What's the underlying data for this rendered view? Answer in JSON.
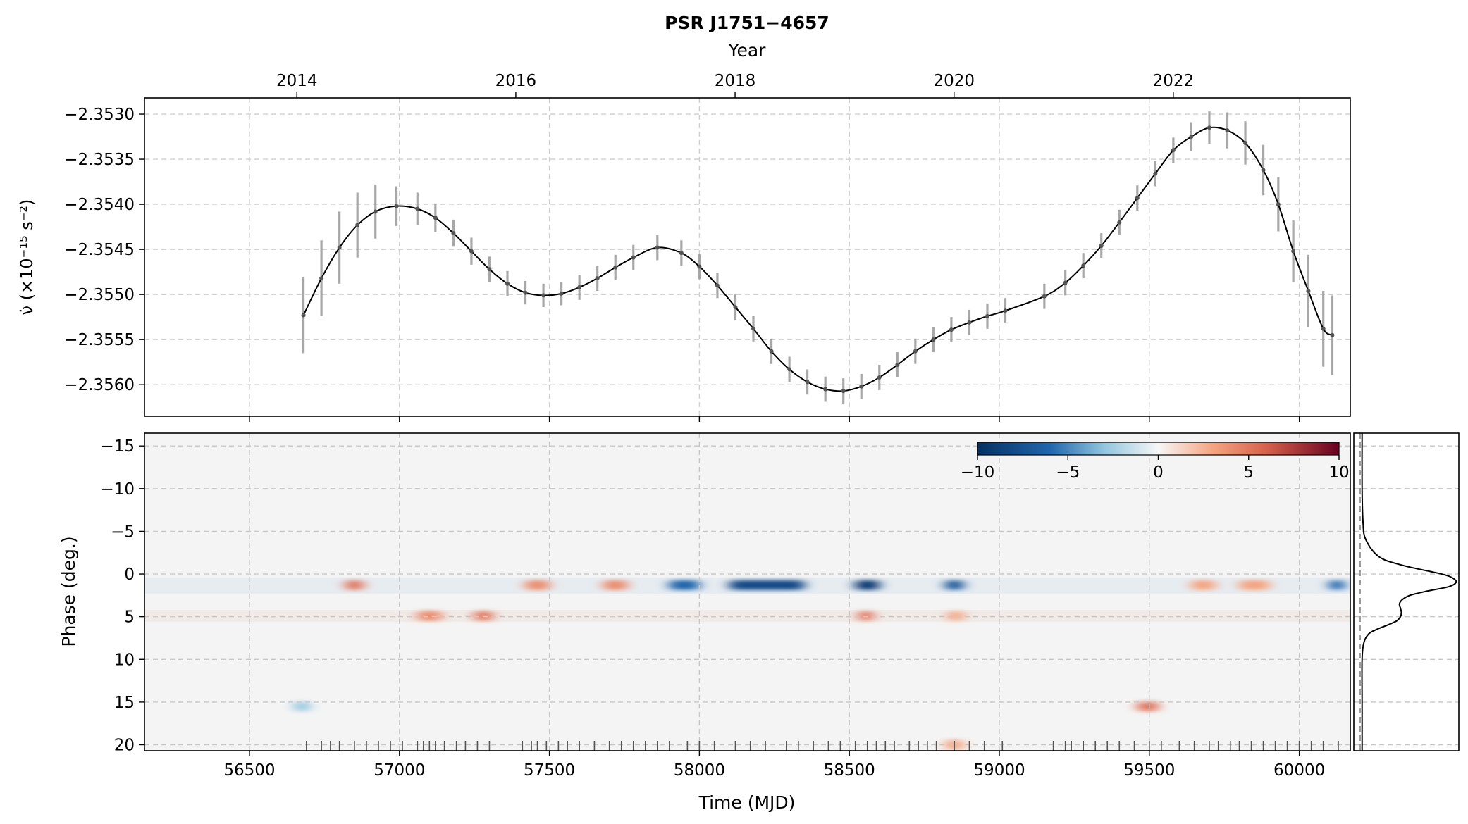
{
  "figure": {
    "title": "PSR J1751−4657"
  },
  "chart_data": [
    {
      "type": "line",
      "panel": "spin-down",
      "title": "PSR J1751−4657",
      "xlabel": "Time (MJD)",
      "top_xlabel": "Year",
      "ylabel": "ν̇ (×10⁻¹⁵ s⁻²)",
      "xlim": [
        56150,
        60170
      ],
      "ylim": [
        -2.35635,
        -2.35282
      ],
      "x_ticks": [
        56500,
        57000,
        57500,
        58000,
        58500,
        59000,
        59500,
        60000
      ],
      "y_ticks": [
        -2.353,
        -2.3535,
        -2.354,
        -2.3545,
        -2.355,
        -2.3555,
        -2.356
      ],
      "y_tick_labels": [
        "−2.3530",
        "−2.3535",
        "−2.3540",
        "−2.3545",
        "−2.3550",
        "−2.3555",
        "−2.3560"
      ],
      "year_ticks": [
        {
          "label": "2014",
          "mjd": 56658
        },
        {
          "label": "2016",
          "mjd": 57388
        },
        {
          "label": "2018",
          "mjd": 58119
        },
        {
          "label": "2020",
          "mjd": 58849
        },
        {
          "label": "2022",
          "mjd": 59580
        }
      ],
      "grid": true,
      "series": [
        {
          "color": "#000000",
          "errorbar_color": "#999999",
          "x": [
            56680,
            56740,
            56800,
            56860,
            56920,
            56990,
            57060,
            57120,
            57180,
            57240,
            57300,
            57360,
            57420,
            57480,
            57540,
            57600,
            57660,
            57720,
            57780,
            57860,
            57940,
            58000,
            58060,
            58120,
            58180,
            58240,
            58300,
            58360,
            58420,
            58480,
            58540,
            58600,
            58660,
            58720,
            58780,
            58840,
            58900,
            58960,
            59020,
            59150,
            59220,
            59280,
            59340,
            59400,
            59460,
            59520,
            59580,
            59640,
            59700,
            59760,
            59820,
            59880,
            59930,
            59980,
            60030,
            60080,
            60110
          ],
          "y": [
            -2.35523,
            -2.35482,
            -2.35448,
            -2.35423,
            -2.35408,
            -2.35402,
            -2.35405,
            -2.35415,
            -2.35432,
            -2.35452,
            -2.35472,
            -2.35488,
            -2.35498,
            -2.35501,
            -2.35499,
            -2.35492,
            -2.35482,
            -2.3547,
            -2.35459,
            -2.35448,
            -2.35454,
            -2.35469,
            -2.3549,
            -2.35514,
            -2.35538,
            -2.35563,
            -2.35583,
            -2.35597,
            -2.35605,
            -2.35607,
            -2.35602,
            -2.35592,
            -2.35578,
            -2.35563,
            -2.3555,
            -2.35539,
            -2.35531,
            -2.35524,
            -2.35518,
            -2.35502,
            -2.35487,
            -2.35468,
            -2.35446,
            -2.3542,
            -2.35393,
            -2.35366,
            -2.3534,
            -2.35325,
            -2.35315,
            -2.35318,
            -2.35332,
            -2.35362,
            -2.354,
            -2.35452,
            -2.35496,
            -2.35538,
            -2.35545
          ],
          "err": [
            0.00042,
            0.00042,
            0.0004,
            0.00036,
            0.0003,
            0.00022,
            0.00018,
            0.00016,
            0.00015,
            0.00015,
            0.00014,
            0.00014,
            0.00013,
            0.00013,
            0.00013,
            0.00014,
            0.00014,
            0.00014,
            0.00014,
            0.00014,
            0.00014,
            0.00014,
            0.00014,
            0.00014,
            0.00014,
            0.00014,
            0.00014,
            0.00014,
            0.00014,
            0.00014,
            0.00014,
            0.00014,
            0.00014,
            0.00014,
            0.00014,
            0.00014,
            0.00014,
            0.00014,
            0.00014,
            0.00014,
            0.00014,
            0.00014,
            0.00014,
            0.00014,
            0.00014,
            0.00014,
            0.00014,
            0.00016,
            0.00018,
            0.0002,
            0.00024,
            0.00028,
            0.0003,
            0.00034,
            0.0004,
            0.00042,
            0.00044
          ]
        }
      ]
    },
    {
      "type": "heatmap",
      "panel": "profile-residuals",
      "xlabel": "Time (MJD)",
      "ylabel": "Phase (deg.)",
      "xlim": [
        56150,
        60170
      ],
      "ylim": [
        -16.5,
        20.7
      ],
      "x_ticks": [
        56500,
        57000,
        57500,
        58000,
        58500,
        59000,
        59500,
        60000
      ],
      "y_ticks": [
        -15,
        -10,
        -5,
        0,
        5,
        10,
        15,
        20
      ],
      "y_tick_labels": [
        "−15",
        "−10",
        "−5",
        "0",
        "5",
        "10",
        "15",
        "20"
      ],
      "colorbar": {
        "colormap": "RdBu_r",
        "low_color": "#053061",
        "mid_color": "#f7f7f7",
        "high_color": "#67001f",
        "range": [
          -10,
          10
        ],
        "ticks": [
          -10,
          -5,
          0,
          5,
          10
        ],
        "tick_labels": [
          "−10",
          "−5",
          "0",
          "5",
          "10"
        ],
        "placement": "top-right"
      },
      "features": [
        {
          "phase": 1.3,
          "mjd_start": 58100,
          "mjd_end": 58350,
          "value": -8
        },
        {
          "phase": 1.3,
          "mjd_start": 58520,
          "mjd_end": 58600,
          "value": -9
        },
        {
          "phase": 1.3,
          "mjd_start": 58820,
          "mjd_end": 58880,
          "value": -7
        },
        {
          "phase": 1.3,
          "mjd_start": 57900,
          "mjd_end": 58000,
          "value": -6
        },
        {
          "phase": 1.3,
          "mjd_start": 56820,
          "mjd_end": 56880,
          "value": 5
        },
        {
          "phase": 1.3,
          "mjd_start": 57420,
          "mjd_end": 57500,
          "value": 4
        },
        {
          "phase": 1.3,
          "mjd_start": 57680,
          "mjd_end": 57760,
          "value": 4
        },
        {
          "phase": 1.3,
          "mjd_start": 59640,
          "mjd_end": 59720,
          "value": 3
        },
        {
          "phase": 1.3,
          "mjd_start": 59800,
          "mjd_end": 59900,
          "value": 3
        },
        {
          "phase": 1.3,
          "mjd_start": 60100,
          "mjd_end": 60150,
          "value": -6
        },
        {
          "phase": 4.9,
          "mjd_start": 57060,
          "mjd_end": 57140,
          "value": 4
        },
        {
          "phase": 4.9,
          "mjd_start": 57250,
          "mjd_end": 57310,
          "value": 5
        },
        {
          "phase": 4.9,
          "mjd_start": 58530,
          "mjd_end": 58580,
          "value": 5
        },
        {
          "phase": 4.9,
          "mjd_start": 58830,
          "mjd_end": 58880,
          "value": 3
        },
        {
          "phase": 15.5,
          "mjd_start": 59460,
          "mjd_end": 59530,
          "value": 5
        },
        {
          "phase": 15.5,
          "mjd_start": 56650,
          "mjd_end": 56700,
          "value": -3
        },
        {
          "phase": 20.0,
          "mjd_start": 58820,
          "mjd_end": 58880,
          "value": 3
        }
      ],
      "observation_epochs": [
        56690,
        56740,
        56770,
        56800,
        56850,
        56890,
        56930,
        56970,
        57010,
        57060,
        57080,
        57100,
        57120,
        57150,
        57190,
        57220,
        57260,
        57300,
        57410,
        57440,
        57460,
        57490,
        57530,
        57560,
        57600,
        57650,
        57700,
        57740,
        57780,
        57820,
        57860,
        57900,
        57960,
        58000,
        58050,
        58120,
        58170,
        58220,
        58290,
        58330,
        58380,
        58430,
        58470,
        58520,
        58560,
        58590,
        58620,
        58650,
        58700,
        58730,
        58760,
        58790,
        58850,
        58900,
        58950,
        59010,
        59180,
        59220,
        59240,
        59280,
        59320,
        59360,
        59400,
        59450,
        59500,
        59540,
        59600,
        59650,
        59700,
        59730,
        59770,
        59800,
        59840,
        59880,
        59920,
        59960,
        60000,
        60040,
        60080,
        60130
      ]
    },
    {
      "type": "line",
      "panel": "mean-profile",
      "xlabel": "",
      "ylabel": "",
      "ylim": [
        -16.5,
        20.7
      ],
      "series": [
        {
          "color": "#000000",
          "phase": [
            -16.5,
            -10,
            -6,
            -4,
            -2,
            -1,
            0,
            0.5,
            1,
            1.5,
            2,
            2.5,
            3,
            3.5,
            4,
            4.5,
            5,
            5.5,
            6,
            6.5,
            7,
            8,
            10,
            15,
            20.7
          ],
          "intensity": [
            0.02,
            0.02,
            0.03,
            0.06,
            0.2,
            0.45,
            0.85,
            0.97,
            1.0,
            0.92,
            0.7,
            0.52,
            0.44,
            0.41,
            0.42,
            0.43,
            0.42,
            0.38,
            0.28,
            0.17,
            0.09,
            0.04,
            0.02,
            0.02,
            0.02
          ]
        }
      ]
    }
  ]
}
